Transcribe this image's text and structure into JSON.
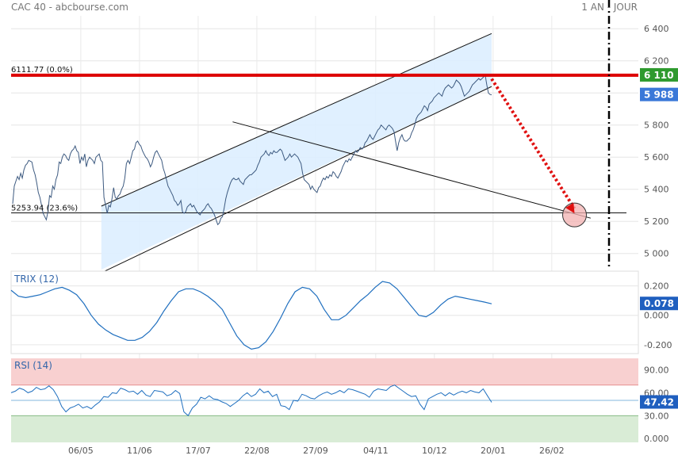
{
  "header": {
    "instrument": "CAC 40 - abcbourse.com",
    "period": "1 AN - JOUR"
  },
  "colors": {
    "price_line": "#3d5a80",
    "indicator_line": "#1f6fbf",
    "channel_fill": "#ddeeff",
    "resistance": "#dd0000",
    "last_price_badge": "#3a78d8",
    "resistance_badge": "#2e9a2e",
    "trix_badge": "#1f5fbf",
    "rsi_badge": "#1f5fbf",
    "rsi_overbought_zone": "#f8d0d0",
    "rsi_oversold_zone": "#d9ecd6",
    "projection": "#e01010"
  },
  "chart_data": [
    {
      "type": "line",
      "id": "price",
      "ylim": [
        4900,
        6480
      ],
      "yticks": [
        "6 400",
        "6 200",
        "6 000",
        "5 800",
        "5 600",
        "5 400",
        "5 200",
        "5 000"
      ],
      "ytick_values": [
        6400,
        6200,
        6000,
        5800,
        5600,
        5400,
        5200,
        5000
      ],
      "xtick_labels": [
        "06/05",
        "11/06",
        "17/07",
        "22/08",
        "27/09",
        "04/11",
        "10/12",
        "20/01",
        "26/02"
      ],
      "resistance": {
        "value": 6110,
        "label": "6111.77  (0.0%)",
        "badge": "6 110"
      },
      "support": {
        "value": 5253,
        "label": "5253.94  (23.6%)"
      },
      "last_value": {
        "value": 5988,
        "badge": "5 988"
      },
      "channel": {
        "start_index": 123,
        "end_index": 655,
        "upper": [
          5295,
          6370
        ],
        "lower": [
          4880,
          6040
        ]
      },
      "trend_line": {
        "start_index": 302,
        "end_index": 790,
        "values": [
          5820,
          5220
        ]
      },
      "projection": {
        "target_index": 768,
        "target_value": 5250,
        "circle_value": 5240
      },
      "series": [
        {
          "values": [
            5310,
            5420,
            5450,
            5480,
            5460,
            5500,
            5470,
            5520,
            5550,
            5560,
            5580,
            5575,
            5570,
            5520,
            5490,
            5440,
            5380,
            5350,
            5300,
            5250,
            5230,
            5210,
            5260,
            5360,
            5350,
            5420,
            5400,
            5460,
            5490,
            5570,
            5560,
            5600,
            5620,
            5610,
            5590,
            5580,
            5620,
            5640,
            5650,
            5670,
            5640,
            5630,
            5560,
            5600,
            5580,
            5620,
            5540,
            5580,
            5600,
            5590,
            5580,
            5560,
            5600,
            5610,
            5620,
            5580,
            5570,
            5350,
            5300,
            5250,
            5300,
            5290,
            5340,
            5410,
            5350,
            5340,
            5360,
            5370,
            5400,
            5420,
            5470,
            5560,
            5580,
            5560,
            5600,
            5640,
            5650,
            5690,
            5700,
            5680,
            5670,
            5640,
            5620,
            5600,
            5590,
            5570,
            5540,
            5560,
            5600,
            5630,
            5640,
            5620,
            5600,
            5580,
            5530,
            5500,
            5460,
            5420,
            5400,
            5380,
            5360,
            5330,
            5320,
            5300,
            5310,
            5330,
            5260,
            5250,
            5260,
            5290,
            5300,
            5310,
            5290,
            5300,
            5280,
            5260,
            5250,
            5240,
            5260,
            5270,
            5280,
            5300,
            5310,
            5290,
            5280,
            5260,
            5240,
            5210,
            5180,
            5190,
            5220,
            5230,
            5280,
            5340,
            5380,
            5410,
            5440,
            5460,
            5470,
            5460,
            5460,
            5470,
            5450,
            5440,
            5430,
            5460,
            5470,
            5480,
            5490,
            5490,
            5500,
            5510,
            5520,
            5550,
            5570,
            5600,
            5610,
            5620,
            5640,
            5620,
            5610,
            5630,
            5620,
            5640,
            5630,
            5630,
            5640,
            5650,
            5640,
            5610,
            5580,
            5590,
            5600,
            5620,
            5600,
            5610,
            5620,
            5610,
            5600,
            5580,
            5560,
            5500,
            5460,
            5450,
            5440,
            5430,
            5400,
            5420,
            5400,
            5390,
            5380,
            5410,
            5420,
            5450,
            5470,
            5460,
            5480,
            5470,
            5490,
            5480,
            5510,
            5500,
            5480,
            5470,
            5490,
            5510,
            5540,
            5560,
            5580,
            5570,
            5590,
            5580,
            5600,
            5620,
            5640,
            5630,
            5640,
            5660,
            5650,
            5660,
            5690,
            5700,
            5720,
            5740,
            5720,
            5710,
            5730,
            5750,
            5770,
            5780,
            5800,
            5790,
            5780,
            5770,
            5790,
            5800,
            5790,
            5780,
            5760,
            5700,
            5640,
            5690,
            5720,
            5740,
            5710,
            5700,
            5700,
            5710,
            5720,
            5750,
            5770,
            5800,
            5840,
            5860,
            5870,
            5880,
            5900,
            5920,
            5910,
            5890,
            5930,
            5940,
            5950,
            5970,
            5980,
            5990,
            6000,
            5990,
            5980,
            6010,
            6030,
            6040,
            6050,
            6040,
            6030,
            6040,
            6060,
            6080,
            6070,
            6060,
            6040,
            6010,
            5980,
            5990,
            6000,
            6010,
            6030,
            6050,
            6060,
            6070,
            6080,
            6090,
            6080,
            6090,
            6100,
            6110,
            6050,
            6000,
            5990,
            5988
          ]
        }
      ]
    },
    {
      "type": "line",
      "id": "trix",
      "ylim": [
        -0.26,
        0.3
      ],
      "title": "TRIX (12)",
      "yticks": [
        "0.200",
        "0.000",
        "-0.200"
      ],
      "ytick_values": [
        0.2,
        0.0,
        -0.2
      ],
      "last_value": {
        "value": 0.078,
        "badge": "0.078"
      },
      "series": [
        {
          "values": [
            0.17,
            0.13,
            0.12,
            0.13,
            0.14,
            0.16,
            0.18,
            0.19,
            0.17,
            0.14,
            0.08,
            0.0,
            -0.06,
            -0.1,
            -0.13,
            -0.15,
            -0.17,
            -0.17,
            -0.15,
            -0.11,
            -0.05,
            0.03,
            0.1,
            0.16,
            0.18,
            0.18,
            0.16,
            0.13,
            0.09,
            0.04,
            -0.05,
            -0.14,
            -0.2,
            -0.23,
            -0.22,
            -0.18,
            -0.11,
            -0.02,
            0.08,
            0.16,
            0.19,
            0.18,
            0.13,
            0.04,
            -0.03,
            -0.03,
            0.0,
            0.05,
            0.1,
            0.14,
            0.19,
            0.23,
            0.22,
            0.18,
            0.12,
            0.06,
            0.0,
            -0.01,
            0.02,
            0.07,
            0.11,
            0.13,
            0.12,
            0.11,
            0.1,
            0.09,
            0.078
          ]
        }
      ]
    },
    {
      "type": "line",
      "id": "rsi",
      "ylim": [
        -5,
        105
      ],
      "title": "RSI (14)",
      "yticks": [
        "90.00",
        "60.00",
        "30.00",
        "0.000"
      ],
      "ytick_values": [
        90,
        60,
        30,
        0
      ],
      "overbought": 70,
      "oversold": 30,
      "reference_level": 50,
      "last_value": {
        "value": 47.42,
        "badge": "47.42"
      },
      "series": [
        {
          "values": [
            60,
            62,
            66,
            64,
            60,
            62,
            67,
            64,
            65,
            69,
            64,
            55,
            42,
            35,
            40,
            42,
            45,
            40,
            42,
            39,
            44,
            48,
            55,
            54,
            60,
            59,
            66,
            64,
            61,
            62,
            58,
            63,
            57,
            55,
            63,
            62,
            61,
            56,
            58,
            63,
            59,
            35,
            30,
            40,
            45,
            54,
            52,
            56,
            52,
            51,
            48,
            46,
            42,
            46,
            50,
            56,
            60,
            55,
            58,
            65,
            60,
            62,
            55,
            58,
            43,
            42,
            38,
            50,
            49,
            58,
            56,
            53,
            52,
            56,
            59,
            61,
            58,
            60,
            63,
            60,
            65,
            64,
            62,
            60,
            58,
            54,
            62,
            65,
            64,
            63,
            68,
            70,
            66,
            62,
            58,
            55,
            56,
            45,
            38,
            52,
            55,
            58,
            60,
            56,
            60,
            57,
            60,
            62,
            60,
            63,
            61,
            60,
            65,
            56,
            47.42
          ]
        }
      ]
    }
  ]
}
